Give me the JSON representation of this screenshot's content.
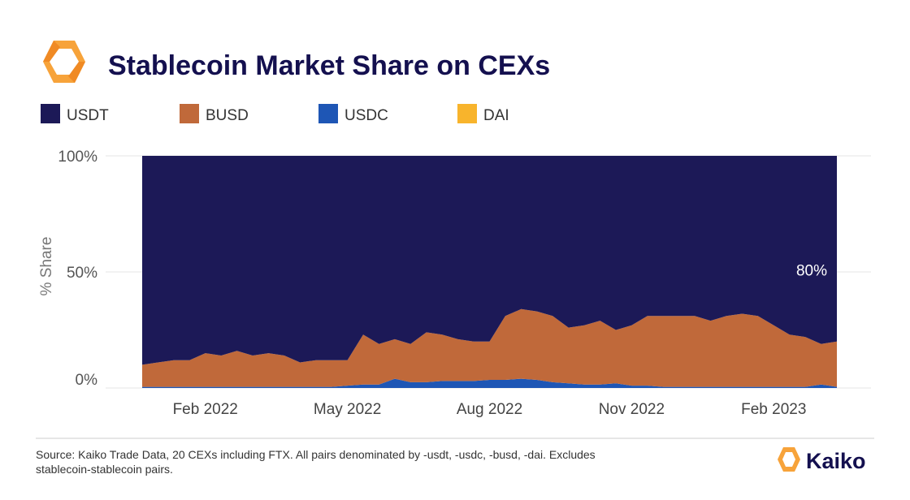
{
  "chart_data": {
    "type": "stacked-area",
    "title": "Stablecoin Market Share on CEXs",
    "y_label": "% Share",
    "source": "Source: Kaiko Trade Data, 20 CEXs including FTX. All pairs denominated by -usdt, -usdc, -busd, -dai. Excludes stablecoin-stablecoin pairs.",
    "brand": "Kaiko",
    "categories": [
      null,
      null,
      null,
      null,
      "Feb 2022",
      null,
      null,
      null,
      null,
      null,
      null,
      null,
      null,
      "May 2022",
      null,
      null,
      null,
      null,
      null,
      null,
      null,
      null,
      "Aug 2022",
      null,
      null,
      null,
      null,
      null,
      null,
      null,
      null,
      "Nov 2022",
      null,
      null,
      null,
      null,
      null,
      null,
      null,
      null,
      "Feb 2023",
      null,
      null,
      null,
      null
    ],
    "series": [
      {
        "name": "USDT",
        "color": "#1c1957",
        "values": [
          90,
          89,
          88,
          88,
          85,
          86,
          84,
          86,
          85,
          86,
          89,
          88,
          88,
          88,
          77,
          81,
          79,
          81,
          76,
          77,
          79,
          80,
          80,
          69,
          66,
          67,
          69,
          74,
          73,
          71,
          75,
          73,
          69,
          69,
          69,
          69,
          71,
          69,
          68,
          69,
          73,
          77,
          78,
          81,
          80
        ],
        "value_labels": [
          null,
          null,
          null,
          null,
          null,
          null,
          null,
          null,
          null,
          null,
          null,
          null,
          null,
          null,
          null,
          null,
          null,
          null,
          null,
          null,
          null,
          null,
          null,
          null,
          null,
          null,
          null,
          null,
          null,
          null,
          null,
          null,
          null,
          null,
          null,
          null,
          null,
          null,
          null,
          null,
          null,
          null,
          null,
          null,
          "80%"
        ]
      },
      {
        "name": "BUSD",
        "color": "#c0693a",
        "values": [
          9.5,
          10.5,
          11.5,
          11.5,
          14.5,
          13.5,
          15.5,
          13.5,
          14.5,
          13.5,
          10.5,
          11.5,
          11.5,
          11,
          21.5,
          17.5,
          17,
          16.5,
          21.5,
          20,
          18,
          17,
          16.5,
          27.5,
          30,
          29.5,
          28.5,
          24,
          25.5,
          27.5,
          23,
          26,
          30,
          30.5,
          30.5,
          30.5,
          28.5,
          30.5,
          31.5,
          30.5,
          26.5,
          22.5,
          21.5,
          17.5,
          19.5
        ]
      },
      {
        "name": "USDC",
        "color": "#1e56b5",
        "values": [
          0.5,
          0.5,
          0.5,
          0.5,
          0.5,
          0.5,
          0.5,
          0.5,
          0.5,
          0.5,
          0.5,
          0.5,
          0.5,
          1,
          1.5,
          1.5,
          4,
          2.5,
          2.5,
          3,
          3,
          3,
          3.5,
          3.5,
          4,
          3.5,
          2.5,
          2,
          1.5,
          1.5,
          2,
          1,
          1,
          0.5,
          0.5,
          0.5,
          0.5,
          0.5,
          0.5,
          0.5,
          0.5,
          0.5,
          0.5,
          1.5,
          0.5
        ]
      },
      {
        "name": "DAI",
        "color": "#f8b42c",
        "values": [
          0,
          0,
          0,
          0,
          0,
          0,
          0,
          0,
          0,
          0,
          0,
          0,
          0,
          0,
          0,
          0,
          0,
          0,
          0,
          0,
          0,
          0,
          0,
          0,
          0,
          0,
          0,
          0,
          0,
          0,
          0,
          0,
          0,
          0,
          0,
          0,
          0,
          0,
          0,
          0,
          0,
          0,
          0,
          0,
          0
        ]
      }
    ],
    "ylim": [
      0,
      100
    ],
    "yticks": [
      {
        "value": 0,
        "label": "0%"
      },
      {
        "value": 50,
        "label": "50%"
      },
      {
        "value": 100,
        "label": "100%"
      }
    ],
    "grid": true
  }
}
